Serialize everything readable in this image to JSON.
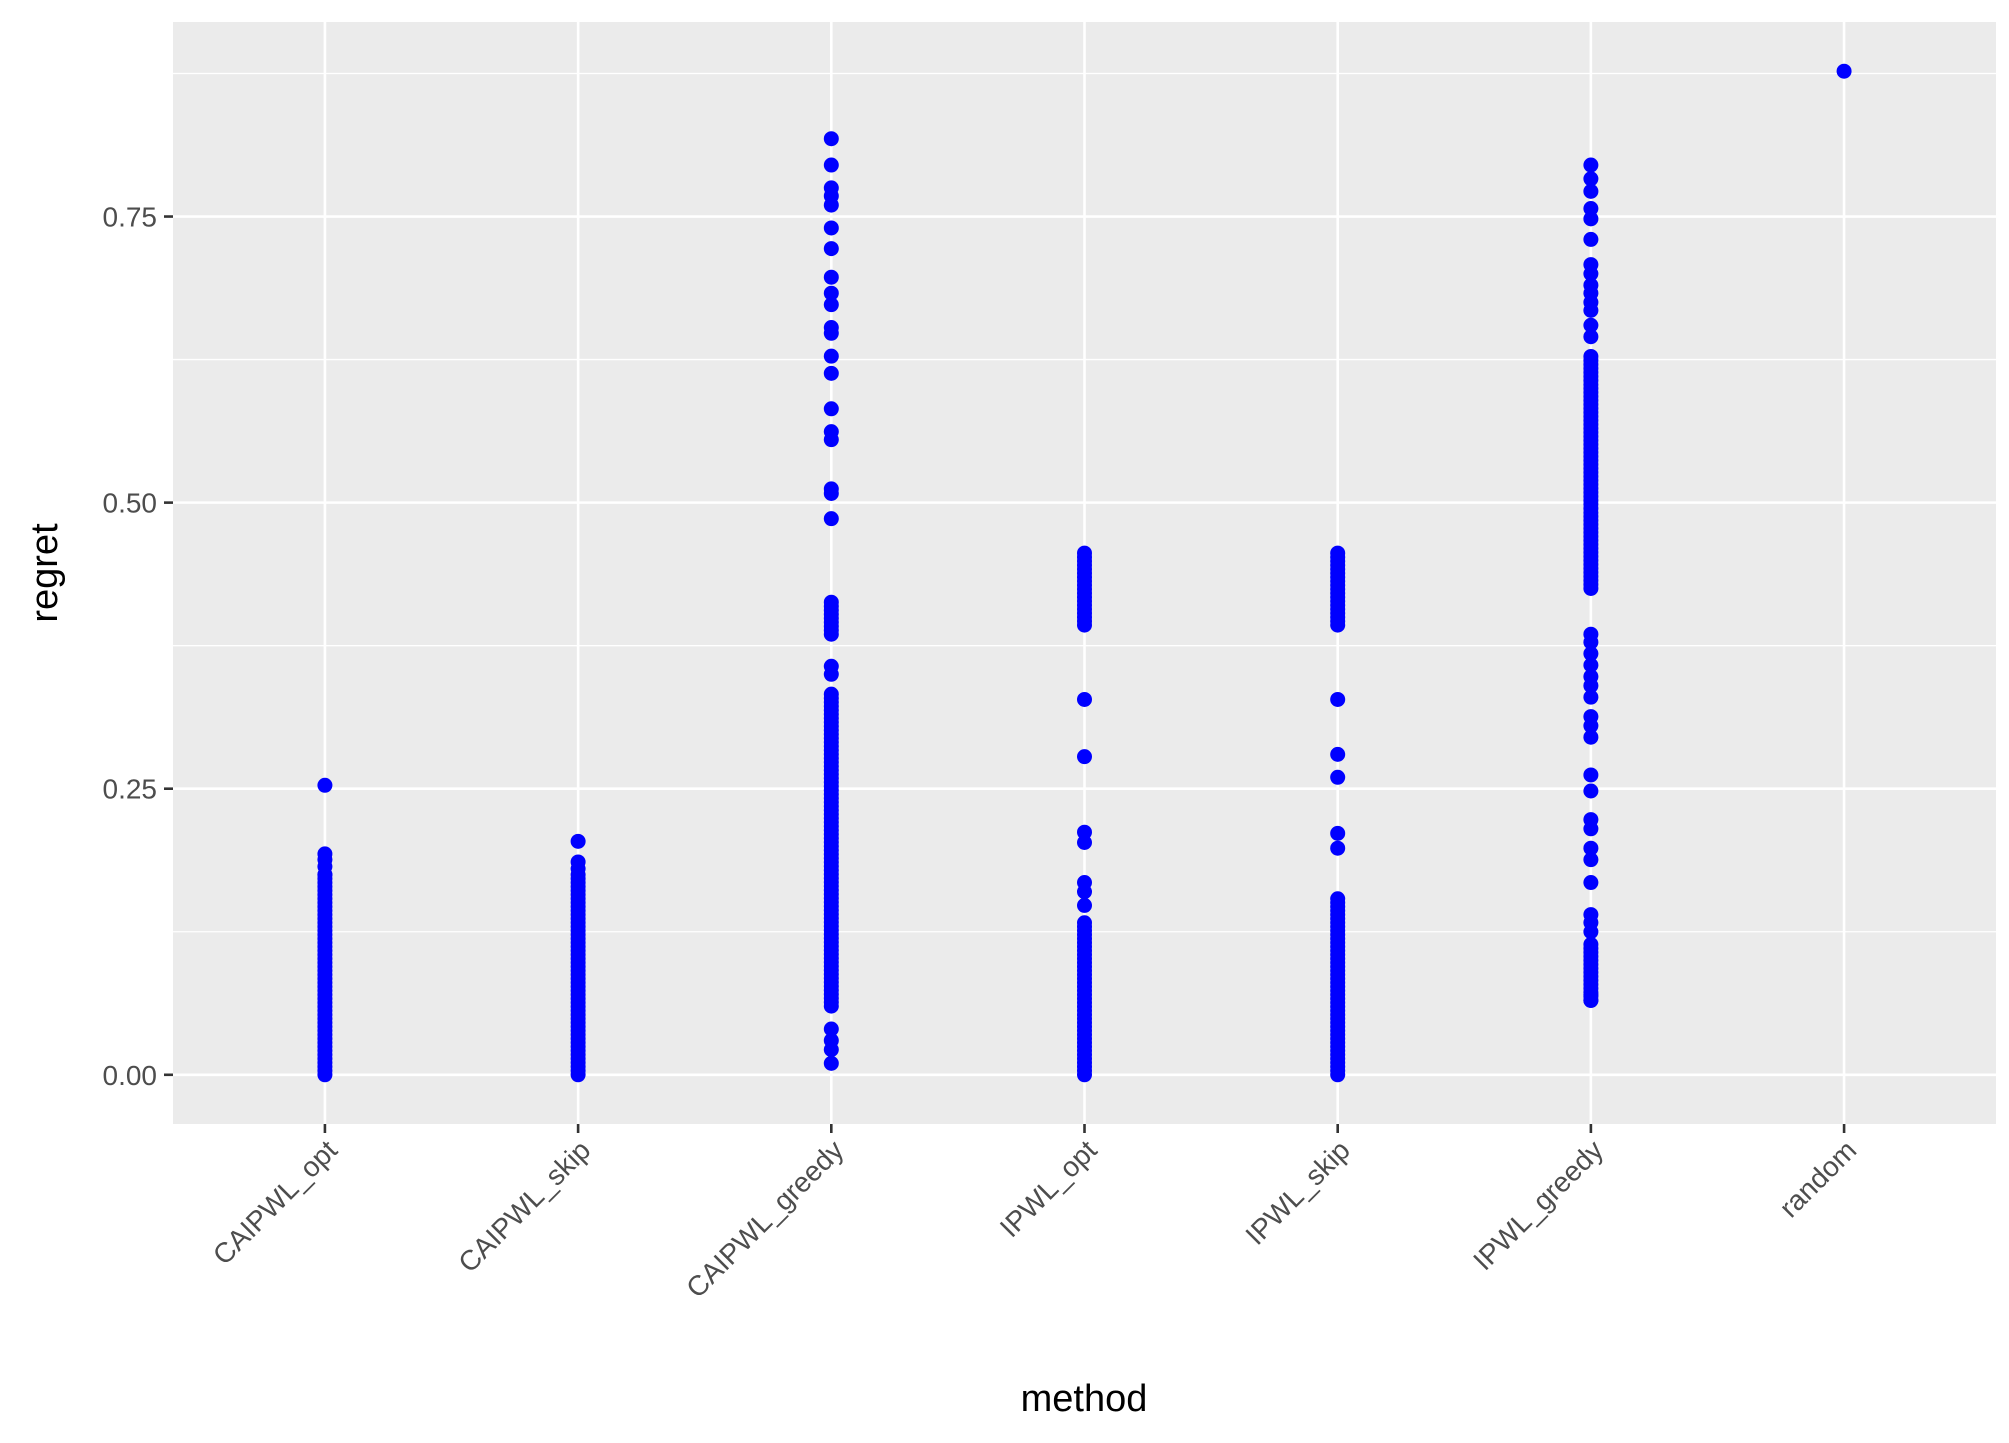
{
  "chart_data": {
    "type": "scatter",
    "xlabel": "method",
    "ylabel": "regret",
    "categories": [
      "CAIPWL_opt",
      "CAIPWL_skip",
      "CAIPWL_greedy",
      "IPWL_opt",
      "IPWL_skip",
      "IPWL_greedy",
      "random"
    ],
    "y_ticks": [
      "0.00",
      "0.25",
      "0.50",
      "0.75"
    ],
    "y_tick_values": [
      0.0,
      0.25,
      0.5,
      0.75
    ],
    "ylim": [
      -0.043,
      0.92
    ],
    "grid": true,
    "legend": "none",
    "point_color": "#0000ff",
    "panel_background": "#ebebeb",
    "grid_color": "#ffffff",
    "series": [
      {
        "category": "CAIPWL_opt",
        "ranges": [
          [
            0.0,
            0.175
          ]
        ],
        "points": [
          0.253,
          0.193,
          0.188,
          0.182,
          0.175
        ]
      },
      {
        "category": "CAIPWL_skip",
        "ranges": [
          [
            0.0,
            0.175
          ]
        ],
        "points": [
          0.204,
          0.186,
          0.18
        ]
      },
      {
        "category": "CAIPWL_greedy",
        "ranges": [
          [
            0.06,
            0.335
          ],
          [
            0.385,
            0.415
          ]
        ],
        "points": [
          0.818,
          0.795,
          0.775,
          0.768,
          0.76,
          0.74,
          0.722,
          0.697,
          0.683,
          0.673,
          0.653,
          0.648,
          0.628,
          0.613,
          0.582,
          0.562,
          0.555,
          0.512,
          0.508,
          0.486,
          0.357,
          0.35,
          0.04,
          0.03,
          0.022,
          0.01
        ]
      },
      {
        "category": "IPWL_opt",
        "ranges": [
          [
            0.0,
            0.135
          ],
          [
            0.393,
            0.458
          ]
        ],
        "points": [
          0.328,
          0.278,
          0.212,
          0.203,
          0.168,
          0.16,
          0.148
        ]
      },
      {
        "category": "IPWL_skip",
        "ranges": [
          [
            0.0,
            0.155
          ],
          [
            0.393,
            0.458
          ]
        ],
        "points": [
          0.328,
          0.28,
          0.26,
          0.211,
          0.198
        ]
      },
      {
        "category": "IPWL_greedy",
        "ranges": [
          [
            0.425,
            0.63
          ],
          [
            0.065,
            0.115
          ]
        ],
        "points": [
          0.795,
          0.783,
          0.772,
          0.757,
          0.748,
          0.73,
          0.708,
          0.7,
          0.69,
          0.683,
          0.675,
          0.668,
          0.655,
          0.645,
          0.385,
          0.378,
          0.368,
          0.358,
          0.348,
          0.34,
          0.33,
          0.313,
          0.305,
          0.295,
          0.262,
          0.248,
          0.223,
          0.215,
          0.198,
          0.188,
          0.168,
          0.14,
          0.133,
          0.125,
          0.07,
          0.065
        ]
      },
      {
        "category": "random",
        "ranges": [],
        "points": [
          0.877
        ]
      }
    ]
  }
}
